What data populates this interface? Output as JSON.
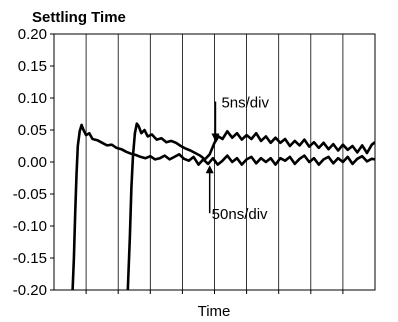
{
  "chart_data": {
    "type": "line",
    "title": "Settling Time",
    "xlabel": "Time",
    "ylabel": "",
    "ylim": [
      -0.2,
      0.2
    ],
    "xlim": [
      0,
      10
    ],
    "yticks": [
      "0.20",
      "0.15",
      "0.10",
      "0.05",
      "0.00",
      "-0.05",
      "-0.10",
      "-0.15",
      "-0.20"
    ],
    "grid": "vertical",
    "legend": "none",
    "series": [
      {
        "name": "5ns/div",
        "points": [
          [
            2.3,
            -0.2
          ],
          [
            2.36,
            -0.12
          ],
          [
            2.41,
            -0.04
          ],
          [
            2.46,
            0.01
          ],
          [
            2.52,
            0.045
          ],
          [
            2.58,
            0.06
          ],
          [
            2.64,
            0.056
          ],
          [
            2.72,
            0.045
          ],
          [
            2.82,
            0.05
          ],
          [
            2.92,
            0.04
          ],
          [
            3.05,
            0.043
          ],
          [
            3.2,
            0.035
          ],
          [
            3.35,
            0.037
          ],
          [
            3.5,
            0.031
          ],
          [
            3.65,
            0.033
          ],
          [
            3.8,
            0.03
          ],
          [
            3.95,
            0.025
          ],
          [
            4.1,
            0.021
          ],
          [
            4.25,
            0.018
          ],
          [
            4.4,
            0.014
          ],
          [
            4.55,
            0.01
          ],
          [
            4.7,
            0.004
          ],
          [
            4.85,
            0.012
          ],
          [
            5.0,
            0.03
          ],
          [
            5.12,
            0.04
          ],
          [
            5.25,
            0.036
          ],
          [
            5.4,
            0.048
          ],
          [
            5.55,
            0.038
          ],
          [
            5.7,
            0.045
          ],
          [
            5.85,
            0.035
          ],
          [
            6.0,
            0.042
          ],
          [
            6.15,
            0.036
          ],
          [
            6.3,
            0.045
          ],
          [
            6.45,
            0.033
          ],
          [
            6.6,
            0.04
          ],
          [
            6.75,
            0.03
          ],
          [
            6.9,
            0.038
          ],
          [
            7.05,
            0.03
          ],
          [
            7.2,
            0.036
          ],
          [
            7.35,
            0.025
          ],
          [
            7.5,
            0.033
          ],
          [
            7.65,
            0.026
          ],
          [
            7.8,
            0.035
          ],
          [
            7.95,
            0.024
          ],
          [
            8.1,
            0.031
          ],
          [
            8.25,
            0.022
          ],
          [
            8.4,
            0.03
          ],
          [
            8.55,
            0.02
          ],
          [
            8.7,
            0.028
          ],
          [
            8.85,
            0.018
          ],
          [
            9.0,
            0.027
          ],
          [
            9.15,
            0.019
          ],
          [
            9.3,
            0.025
          ],
          [
            9.45,
            0.015
          ],
          [
            9.6,
            0.026
          ],
          [
            9.75,
            0.014
          ],
          [
            9.9,
            0.027
          ],
          [
            10.0,
            0.031
          ]
        ]
      },
      {
        "name": "50ns/div",
        "points": [
          [
            0.58,
            -0.2
          ],
          [
            0.62,
            -0.15
          ],
          [
            0.66,
            -0.08
          ],
          [
            0.7,
            -0.02
          ],
          [
            0.74,
            0.025
          ],
          [
            0.8,
            0.048
          ],
          [
            0.86,
            0.058
          ],
          [
            0.92,
            0.05
          ],
          [
            1.0,
            0.042
          ],
          [
            1.1,
            0.045
          ],
          [
            1.2,
            0.036
          ],
          [
            1.35,
            0.034
          ],
          [
            1.5,
            0.03
          ],
          [
            1.65,
            0.026
          ],
          [
            1.8,
            0.027
          ],
          [
            1.95,
            0.022
          ],
          [
            2.1,
            0.02
          ],
          [
            2.25,
            0.016
          ],
          [
            2.4,
            0.013
          ],
          [
            2.55,
            0.011
          ],
          [
            2.7,
            0.008
          ],
          [
            2.85,
            0.006
          ],
          [
            3.0,
            0.009
          ],
          [
            3.15,
            0.004
          ],
          [
            3.3,
            0.006
          ],
          [
            3.45,
            0.01
          ],
          [
            3.6,
            0.004
          ],
          [
            3.75,
            0.008
          ],
          [
            3.9,
            0.012
          ],
          [
            4.05,
            0.005
          ],
          [
            4.2,
            0.002
          ],
          [
            4.35,
            0.008
          ],
          [
            4.5,
            -0.004
          ],
          [
            4.65,
            0.004
          ],
          [
            4.8,
            -0.003
          ],
          [
            4.95,
            0.006
          ],
          [
            5.1,
            -0.004
          ],
          [
            5.25,
            0.002
          ],
          [
            5.4,
            0.01
          ],
          [
            5.55,
            0.0
          ],
          [
            5.7,
            0.006
          ],
          [
            5.85,
            -0.004
          ],
          [
            6.0,
            0.004
          ],
          [
            6.15,
            0.008
          ],
          [
            6.3,
            -0.002
          ],
          [
            6.45,
            0.006
          ],
          [
            6.6,
            0.0
          ],
          [
            6.75,
            0.006
          ],
          [
            6.9,
            -0.004
          ],
          [
            7.05,
            0.006
          ],
          [
            7.2,
            0.002
          ],
          [
            7.35,
            0.008
          ],
          [
            7.5,
            -0.003
          ],
          [
            7.65,
            0.005
          ],
          [
            7.8,
            0.01
          ],
          [
            7.95,
            0.0
          ],
          [
            8.1,
            0.006
          ],
          [
            8.25,
            -0.004
          ],
          [
            8.4,
            0.004
          ],
          [
            8.55,
            0.008
          ],
          [
            8.7,
            -0.002
          ],
          [
            8.85,
            0.006
          ],
          [
            9.0,
            0.0
          ],
          [
            9.15,
            0.008
          ],
          [
            9.3,
            -0.003
          ],
          [
            9.45,
            0.005
          ],
          [
            9.6,
            0.009
          ],
          [
            9.75,
            0.001
          ],
          [
            9.9,
            0.005
          ],
          [
            10.0,
            0.004
          ]
        ]
      }
    ],
    "annotations": [
      {
        "text": "5ns/div",
        "arrow_to": [
          5.03,
          0.032
        ]
      },
      {
        "text": "50ns/div",
        "arrow_to": [
          4.85,
          -0.005
        ]
      }
    ]
  }
}
